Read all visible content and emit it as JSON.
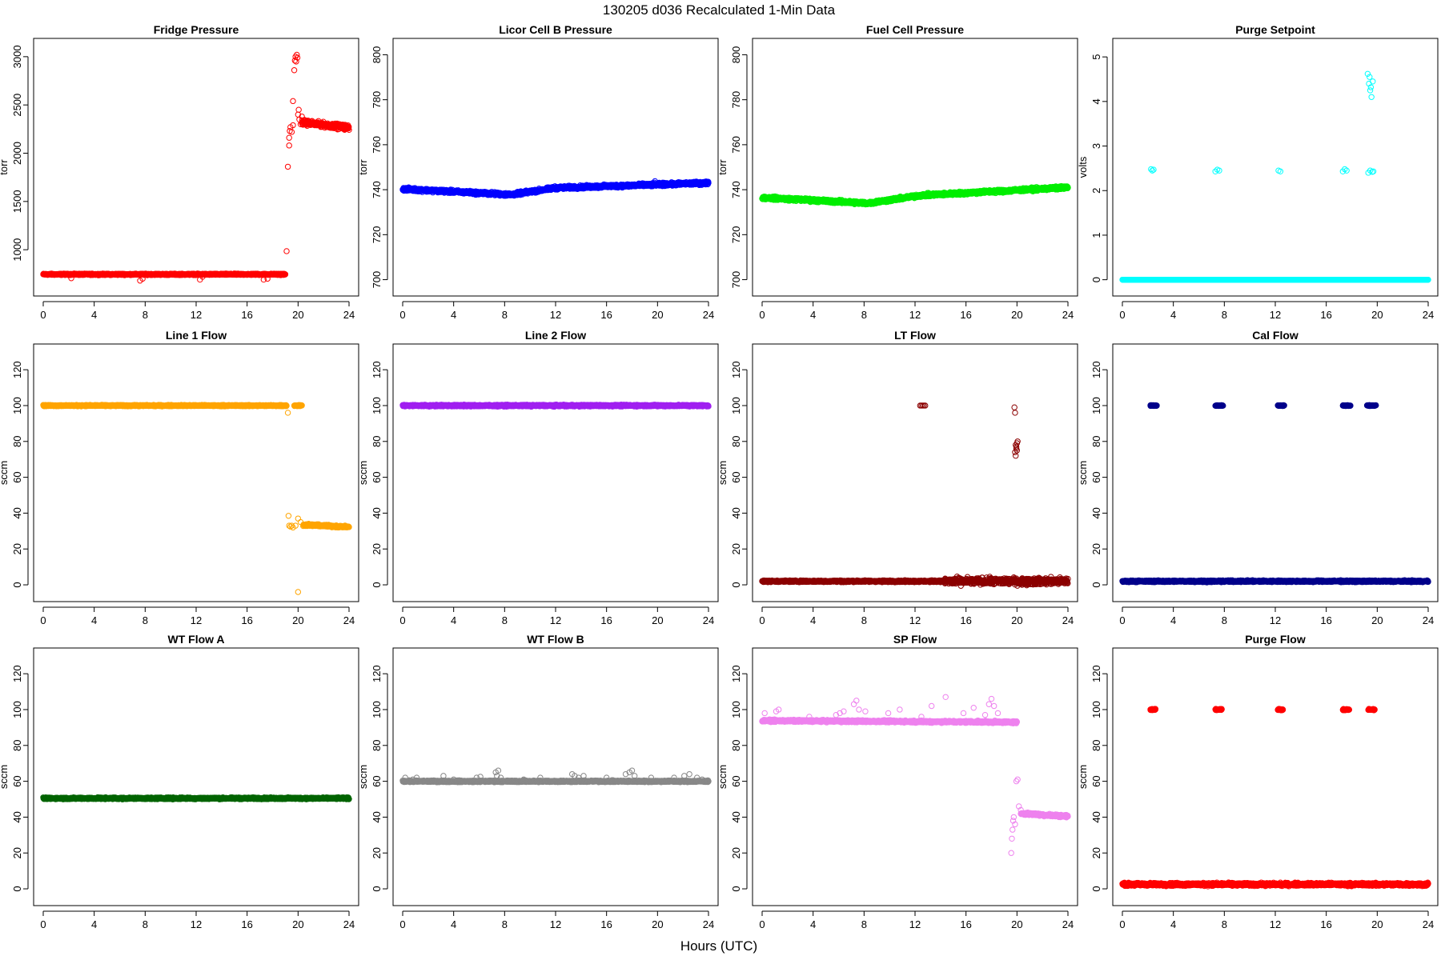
{
  "title": "130205   d036   Recalculated 1-Min Data",
  "xlabel": "Hours (UTC)",
  "chart_data": [
    {
      "type": "scatter",
      "title": "Fridge Pressure",
      "ylabel": "torr",
      "color": "#ff0000",
      "xlim": [
        0,
        24
      ],
      "ylim": [
        620,
        3090
      ],
      "xticks": [
        0,
        4,
        8,
        12,
        16,
        20,
        24
      ],
      "yticks": [
        1000,
        1500,
        2000,
        2500,
        3000
      ],
      "segments": [
        {
          "x0": 0.0,
          "x1": 19.0,
          "y0": 745,
          "y1": 745,
          "jitter": 6
        },
        {
          "x0": 20.3,
          "x1": 24.0,
          "y0": 2320,
          "y1": 2265,
          "jitter": 22
        }
      ],
      "points": [
        [
          2.2,
          705
        ],
        [
          7.6,
          680
        ],
        [
          7.8,
          700
        ],
        [
          12.3,
          690
        ],
        [
          12.5,
          720
        ],
        [
          17.3,
          690
        ],
        [
          17.6,
          700
        ],
        [
          19.1,
          985
        ],
        [
          19.2,
          1860
        ],
        [
          19.3,
          2080
        ],
        [
          19.3,
          2160
        ],
        [
          19.35,
          2230
        ],
        [
          19.4,
          2270
        ],
        [
          19.5,
          2220
        ],
        [
          19.6,
          2290
        ],
        [
          19.6,
          2540
        ],
        [
          19.7,
          2860
        ],
        [
          19.75,
          2960
        ],
        [
          19.8,
          3000
        ],
        [
          19.85,
          2950
        ],
        [
          19.9,
          3020
        ],
        [
          19.95,
          2990
        ],
        [
          20.0,
          2400
        ],
        [
          20.05,
          2450
        ],
        [
          20.1,
          2350
        ],
        [
          20.2,
          2300
        ],
        [
          20.3,
          2380
        ]
      ]
    },
    {
      "type": "scatter",
      "title": "Licor Cell B Pressure",
      "ylabel": "torr",
      "color": "#0000ff",
      "xlim": [
        0,
        24
      ],
      "ylim": [
        697,
        803
      ],
      "xticks": [
        0,
        4,
        8,
        12,
        16,
        20,
        24
      ],
      "yticks": [
        700,
        720,
        740,
        760,
        780,
        800
      ],
      "segments": [
        {
          "x0": 0,
          "x1": 8.5,
          "y0": 740.3,
          "y1": 737.8,
          "jitter": 0.6
        },
        {
          "x0": 8.5,
          "x1": 12,
          "y0": 737.8,
          "y1": 740.8,
          "jitter": 0.6
        },
        {
          "x0": 12,
          "x1": 24,
          "y0": 740.8,
          "y1": 743.0,
          "jitter": 0.6
        }
      ],
      "points": [
        [
          19.5,
          741.5
        ],
        [
          19.8,
          743.8
        ],
        [
          20.1,
          742.0
        ]
      ]
    },
    {
      "type": "scatter",
      "title": "Fuel Cell Pressure",
      "ylabel": "torr",
      "color": "#00ee00",
      "xlim": [
        0,
        24
      ],
      "ylim": [
        697,
        803
      ],
      "xticks": [
        0,
        4,
        8,
        12,
        16,
        20,
        24
      ],
      "yticks": [
        700,
        720,
        740,
        760,
        780,
        800
      ],
      "segments": [
        {
          "x0": 0,
          "x1": 8.3,
          "y0": 736.5,
          "y1": 734.0,
          "jitter": 0.6
        },
        {
          "x0": 8.3,
          "x1": 12.5,
          "y0": 734.0,
          "y1": 737.5,
          "jitter": 0.6
        },
        {
          "x0": 12.5,
          "x1": 24,
          "y0": 737.5,
          "y1": 741.0,
          "jitter": 0.6
        }
      ],
      "points": []
    },
    {
      "type": "scatter",
      "title": "Purge Setpoint",
      "ylabel": "volts",
      "color": "#00ffff",
      "xlim": [
        0,
        24
      ],
      "ylim": [
        -0.15,
        5.2
      ],
      "xticks": [
        0,
        4,
        8,
        12,
        16,
        20,
        24
      ],
      "yticks": [
        0,
        1,
        2,
        3,
        4,
        5
      ],
      "segments": [
        {
          "x0": 0,
          "x1": 24,
          "y0": 0,
          "y1": 0,
          "jitter": 0
        }
      ],
      "points": [
        [
          2.25,
          2.48
        ],
        [
          2.35,
          2.45
        ],
        [
          2.45,
          2.47
        ],
        [
          7.3,
          2.43
        ],
        [
          7.45,
          2.47
        ],
        [
          7.6,
          2.45
        ],
        [
          12.25,
          2.45
        ],
        [
          12.4,
          2.43
        ],
        [
          17.3,
          2.43
        ],
        [
          17.45,
          2.48
        ],
        [
          17.6,
          2.45
        ],
        [
          19.3,
          2.4
        ],
        [
          19.45,
          2.45
        ],
        [
          19.6,
          2.42
        ],
        [
          19.7,
          2.43
        ],
        [
          19.25,
          4.62
        ],
        [
          19.35,
          4.4
        ],
        [
          19.45,
          4.25
        ],
        [
          19.55,
          4.1
        ],
        [
          19.65,
          4.45
        ],
        [
          19.4,
          4.55
        ],
        [
          19.5,
          4.32
        ]
      ]
    },
    {
      "type": "scatter",
      "title": "Line 1 Flow",
      "ylabel": "sccm",
      "color": "#ffa500",
      "xlim": [
        0,
        24
      ],
      "ylim": [
        -4,
        129
      ],
      "xticks": [
        0,
        4,
        8,
        12,
        16,
        20,
        24
      ],
      "yticks": [
        0,
        20,
        40,
        60,
        80,
        100,
        120
      ],
      "segments": [
        {
          "x0": 0,
          "x1": 19.1,
          "y0": 100,
          "y1": 100,
          "jitter": 0.3
        },
        {
          "x0": 19.7,
          "x1": 20.3,
          "y0": 100,
          "y1": 100,
          "jitter": 0.3
        },
        {
          "x0": 20.4,
          "x1": 24,
          "y0": 33.5,
          "y1": 32.3,
          "jitter": 0.5
        }
      ],
      "points": [
        [
          19.2,
          96
        ],
        [
          19.25,
          38.5
        ],
        [
          19.3,
          33
        ],
        [
          19.4,
          32.5
        ],
        [
          19.5,
          33
        ],
        [
          19.6,
          32
        ],
        [
          19.8,
          33
        ],
        [
          20.0,
          37
        ],
        [
          20.2,
          35
        ],
        [
          20.0,
          -4
        ]
      ]
    },
    {
      "type": "scatter",
      "title": "Line 2 Flow",
      "ylabel": "sccm",
      "color": "#a020f0",
      "xlim": [
        0,
        24
      ],
      "ylim": [
        -4,
        129
      ],
      "xticks": [
        0,
        4,
        8,
        12,
        16,
        20,
        24
      ],
      "yticks": [
        0,
        20,
        40,
        60,
        80,
        100,
        120
      ],
      "segments": [
        {
          "x0": 0,
          "x1": 24,
          "y0": 100,
          "y1": 100,
          "jitter": 0.4
        }
      ],
      "points": []
    },
    {
      "type": "scatter",
      "title": "LT Flow",
      "ylabel": "sccm",
      "color": "#8b0000",
      "xlim": [
        0,
        24
      ],
      "ylim": [
        -4,
        129
      ],
      "xticks": [
        0,
        4,
        8,
        12,
        16,
        20,
        24
      ],
      "yticks": [
        0,
        20,
        40,
        60,
        80,
        100,
        120
      ],
      "segments": [
        {
          "x0": 0,
          "x1": 14.3,
          "y0": 2,
          "y1": 2,
          "jitter": 0.4
        },
        {
          "x0": 14.3,
          "x1": 24,
          "y0": 2,
          "y1": 2,
          "jitter": 1.6
        }
      ],
      "points": [
        [
          12.4,
          100
        ],
        [
          12.5,
          100
        ],
        [
          12.6,
          100
        ],
        [
          12.7,
          100
        ],
        [
          12.8,
          100
        ],
        [
          19.8,
          99
        ],
        [
          19.85,
          96
        ],
        [
          19.9,
          78
        ],
        [
          20.0,
          79
        ],
        [
          19.95,
          76
        ],
        [
          19.85,
          74
        ],
        [
          19.9,
          72
        ],
        [
          20.05,
          80
        ],
        [
          19.95,
          77
        ],
        [
          20.0,
          75
        ]
      ]
    },
    {
      "type": "scatter",
      "title": "Cal Flow",
      "ylabel": "sccm",
      "color": "#00008b",
      "xlim": [
        0,
        24
      ],
      "ylim": [
        -4,
        129
      ],
      "xticks": [
        0,
        4,
        8,
        12,
        16,
        20,
        24
      ],
      "yticks": [
        0,
        20,
        40,
        60,
        80,
        100,
        120
      ],
      "segments": [
        {
          "x0": 0,
          "x1": 24,
          "y0": 2,
          "y1": 2,
          "jitter": 0.4
        },
        {
          "x0": 2.2,
          "x1": 2.7,
          "y0": 100,
          "y1": 100,
          "jitter": 0.2
        },
        {
          "x0": 7.3,
          "x1": 7.9,
          "y0": 100,
          "y1": 100,
          "jitter": 0.2
        },
        {
          "x0": 12.2,
          "x1": 12.7,
          "y0": 100,
          "y1": 100,
          "jitter": 0.2
        },
        {
          "x0": 17.3,
          "x1": 17.9,
          "y0": 100,
          "y1": 100,
          "jitter": 0.2
        },
        {
          "x0": 19.2,
          "x1": 19.9,
          "y0": 100,
          "y1": 100,
          "jitter": 0.2
        }
      ],
      "points": []
    },
    {
      "type": "scatter",
      "title": "WT Flow A",
      "ylabel": "sccm",
      "color": "#006400",
      "xlim": [
        0,
        24
      ],
      "ylim": [
        -4,
        129
      ],
      "xticks": [
        0,
        4,
        8,
        12,
        16,
        20,
        24
      ],
      "yticks": [
        0,
        20,
        40,
        60,
        80,
        100,
        120
      ],
      "segments": [
        {
          "x0": 0,
          "x1": 24,
          "y0": 50.5,
          "y1": 50.5,
          "jitter": 0.4
        }
      ],
      "points": []
    },
    {
      "type": "scatter",
      "title": "WT Flow B",
      "ylabel": "sccm",
      "color": "#888888",
      "xlim": [
        0,
        24
      ],
      "ylim": [
        -4,
        129
      ],
      "xticks": [
        0,
        4,
        8,
        12,
        16,
        20,
        24
      ],
      "yticks": [
        0,
        20,
        40,
        60,
        80,
        100,
        120
      ],
      "segments": [
        {
          "x0": 0,
          "x1": 24,
          "y0": 60,
          "y1": 60,
          "jitter": 0.4
        }
      ],
      "points": [
        [
          0.2,
          62
        ],
        [
          0.8,
          61
        ],
        [
          1.1,
          62
        ],
        [
          3.2,
          63
        ],
        [
          4.0,
          61
        ],
        [
          5.8,
          62
        ],
        [
          6.1,
          62.5
        ],
        [
          7.3,
          65
        ],
        [
          7.5,
          66
        ],
        [
          7.4,
          63
        ],
        [
          7.7,
          62
        ],
        [
          9.5,
          61
        ],
        [
          10.8,
          62
        ],
        [
          13.3,
          64
        ],
        [
          13.5,
          63
        ],
        [
          13.8,
          62
        ],
        [
          14.2,
          63
        ],
        [
          16.0,
          62
        ],
        [
          17.5,
          64
        ],
        [
          17.8,
          65
        ],
        [
          18.0,
          66
        ],
        [
          18.2,
          63
        ],
        [
          19.5,
          62
        ],
        [
          21.3,
          62
        ],
        [
          22.1,
          63
        ],
        [
          22.5,
          64
        ],
        [
          23.1,
          62
        ],
        [
          23.5,
          61
        ]
      ]
    },
    {
      "type": "scatter",
      "title": "SP Flow",
      "ylabel": "sccm",
      "color": "#ee82ee",
      "xlim": [
        0,
        24
      ],
      "ylim": [
        -4,
        129
      ],
      "xticks": [
        0,
        4,
        8,
        12,
        16,
        20,
        24
      ],
      "yticks": [
        0,
        20,
        40,
        60,
        80,
        100,
        120
      ],
      "segments": [
        {
          "x0": 0,
          "x1": 20,
          "y0": 93.8,
          "y1": 93.0,
          "jitter": 0.5
        },
        {
          "x0": 20.3,
          "x1": 24,
          "y0": 42,
          "y1": 40.5,
          "jitter": 0.6
        }
      ],
      "points": [
        [
          0.2,
          98
        ],
        [
          1.1,
          99
        ],
        [
          1.3,
          100
        ],
        [
          3.7,
          96
        ],
        [
          5.8,
          97
        ],
        [
          6.1,
          98
        ],
        [
          6.4,
          99
        ],
        [
          7.2,
          103
        ],
        [
          7.4,
          105
        ],
        [
          7.6,
          100
        ],
        [
          8.1,
          99
        ],
        [
          9.9,
          98
        ],
        [
          10.8,
          100
        ],
        [
          12.5,
          96
        ],
        [
          13.3,
          102
        ],
        [
          14.4,
          107
        ],
        [
          15.8,
          98
        ],
        [
          16.6,
          101
        ],
        [
          17.5,
          97
        ],
        [
          17.8,
          103
        ],
        [
          18.0,
          106
        ],
        [
          18.2,
          102
        ],
        [
          18.5,
          98
        ],
        [
          19.55,
          20
        ],
        [
          19.6,
          28
        ],
        [
          19.65,
          33
        ],
        [
          19.7,
          38
        ],
        [
          19.75,
          40
        ],
        [
          19.85,
          36
        ],
        [
          19.95,
          60
        ],
        [
          20.05,
          61
        ],
        [
          20.15,
          46
        ],
        [
          20.3,
          44
        ]
      ]
    },
    {
      "type": "scatter",
      "title": "Purge Flow",
      "ylabel": "sccm",
      "color": "#ff0000",
      "xlim": [
        0,
        24
      ],
      "ylim": [
        -4,
        129
      ],
      "xticks": [
        0,
        4,
        8,
        12,
        16,
        20,
        24
      ],
      "yticks": [
        0,
        20,
        40,
        60,
        80,
        100,
        120
      ],
      "segments": [
        {
          "x0": 0,
          "x1": 24,
          "y0": 2.5,
          "y1": 2.5,
          "jitter": 0.7
        },
        {
          "x0": 2.2,
          "x1": 2.6,
          "y0": 100,
          "y1": 100,
          "jitter": 0.3
        },
        {
          "x0": 7.3,
          "x1": 7.8,
          "y0": 100,
          "y1": 100,
          "jitter": 0.3
        },
        {
          "x0": 12.2,
          "x1": 12.6,
          "y0": 100,
          "y1": 100,
          "jitter": 0.3
        },
        {
          "x0": 17.3,
          "x1": 17.8,
          "y0": 100,
          "y1": 100,
          "jitter": 0.3
        },
        {
          "x0": 19.3,
          "x1": 19.8,
          "y0": 100,
          "y1": 100,
          "jitter": 0.3
        }
      ],
      "points": []
    }
  ]
}
